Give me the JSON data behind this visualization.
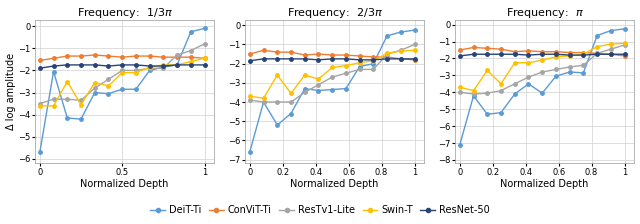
{
  "titles": [
    "Frequency:  $1/3\\pi$",
    "Frequency:  $2/3\\pi$",
    "Frequency:  $\\pi$"
  ],
  "xlabel": "Normalized Depth",
  "ylabel": "Δ log amplitude",
  "legend_labels": [
    "DeiT-Ti",
    "ConViT-Ti",
    "ResTv1-Lite",
    "Swin-T",
    "ResNet-50"
  ],
  "colors_map": {
    "DeiT-Ti": "#5B9BD5",
    "ConViT-Ti": "#ED7D31",
    "ResTv1-Lite": "#A5A5A5",
    "Swin-T": "#FFC000",
    "ResNet-50": "#264478"
  },
  "markers_map": {
    "DeiT-Ti": "o",
    "ConViT-Ti": "o",
    "ResTv1-Lite": "o",
    "Swin-T": "o",
    "ResNet-50": "o"
  },
  "panel1": {
    "DeiT-Ti_y": [
      -5.7,
      -2.05,
      -4.15,
      -4.2,
      -3.0,
      -3.05,
      -2.85,
      -2.85,
      -2.0,
      -1.85,
      -1.75,
      -0.25,
      -0.1
    ],
    "ConViT-Ti_y": [
      -1.55,
      -1.45,
      -1.35,
      -1.35,
      -1.3,
      -1.35,
      -1.4,
      -1.35,
      -1.35,
      -1.4,
      -1.4,
      -1.4,
      -1.45
    ],
    "ResTv1-Lite_y": [
      -3.5,
      -3.3,
      -3.3,
      -3.35,
      -2.8,
      -2.4,
      -2.0,
      -2.0,
      -1.9,
      -1.9,
      -1.3,
      -1.1,
      -0.8
    ],
    "Swin-T_y": [
      -3.6,
      -3.6,
      -2.5,
      -3.55,
      -2.55,
      -2.7,
      -2.1,
      -2.1,
      -1.85,
      -1.75,
      -1.75,
      -1.6,
      -1.45
    ],
    "ResNet-50_y": [
      -1.9,
      -1.8,
      -1.75,
      -1.75,
      -1.75,
      -1.8,
      -1.75,
      -1.75,
      -1.8,
      -1.8,
      -1.75,
      -1.75,
      -1.75
    ],
    "ylim": [
      -6.2,
      0.3
    ],
    "yticks": [
      0,
      -1,
      -2,
      -3,
      -4,
      -5,
      -6
    ],
    "xticks": [
      0,
      0.5,
      1.0
    ],
    "xticklabels": [
      "0",
      "0.5",
      "1"
    ]
  },
  "panel2": {
    "DeiT-Ti_y": [
      -6.6,
      -4.0,
      -5.2,
      -4.6,
      -3.3,
      -3.4,
      -3.35,
      -3.3,
      -2.15,
      -2.0,
      -0.55,
      -0.35,
      -0.25
    ],
    "ConViT-Ti_y": [
      -1.5,
      -1.3,
      -1.4,
      -1.4,
      -1.55,
      -1.5,
      -1.55,
      -1.55,
      -1.6,
      -1.65,
      -1.65,
      -1.75,
      -1.8
    ],
    "ResTv1-Lite_y": [
      -3.9,
      -4.0,
      -4.0,
      -4.0,
      -3.5,
      -3.1,
      -2.7,
      -2.5,
      -2.3,
      -2.3,
      -1.5,
      -1.3,
      -1.0
    ],
    "Swin-T_y": [
      -3.7,
      -3.8,
      -2.6,
      -3.55,
      -2.6,
      -2.8,
      -2.2,
      -2.1,
      -1.95,
      -1.85,
      -1.45,
      -1.35,
      -1.3
    ],
    "ResNet-50_y": [
      -1.85,
      -1.75,
      -1.75,
      -1.75,
      -1.75,
      -1.8,
      -1.75,
      -1.75,
      -1.8,
      -1.8,
      -1.75,
      -1.75,
      -1.75
    ],
    "ylim": [
      -7.2,
      0.3
    ],
    "yticks": [
      0,
      -1,
      -2,
      -3,
      -4,
      -5,
      -6,
      -7
    ],
    "xticks": [
      0,
      0.2,
      0.4,
      0.6,
      0.8,
      1.0
    ],
    "xticklabels": [
      "0",
      "0.2",
      "0.4",
      "0.6",
      "0.8",
      "1"
    ]
  },
  "panel3": {
    "DeiT-Ti_y": [
      -7.1,
      -4.2,
      -5.3,
      -5.2,
      -4.1,
      -3.5,
      -4.05,
      -3.05,
      -2.8,
      -2.85,
      -0.65,
      -0.35,
      -0.25
    ],
    "ConViT-Ti_y": [
      -1.5,
      -1.35,
      -1.4,
      -1.45,
      -1.6,
      -1.55,
      -1.6,
      -1.6,
      -1.65,
      -1.65,
      -1.7,
      -1.75,
      -1.85
    ],
    "ResTv1-Lite_y": [
      -4.0,
      -4.1,
      -4.05,
      -3.9,
      -3.5,
      -3.1,
      -2.8,
      -2.65,
      -2.5,
      -2.4,
      -1.7,
      -1.45,
      -1.2
    ],
    "Swin-T_y": [
      -3.7,
      -3.9,
      -2.7,
      -3.5,
      -2.25,
      -2.25,
      -2.1,
      -1.9,
      -1.85,
      -1.75,
      -1.3,
      -1.15,
      -1.1
    ],
    "ResNet-50_y": [
      -1.85,
      -1.75,
      -1.75,
      -1.75,
      -1.75,
      -1.8,
      -1.75,
      -1.75,
      -1.8,
      -1.8,
      -1.75,
      -1.75,
      -1.75
    ],
    "ylim": [
      -8.2,
      0.3
    ],
    "yticks": [
      0,
      -1,
      -2,
      -3,
      -4,
      -5,
      -6,
      -7,
      -8
    ],
    "xticks": [
      0,
      0.2,
      0.4,
      0.6,
      0.8,
      1.0
    ],
    "xticklabels": [
      "0",
      "0.2",
      "0.4",
      "0.6",
      "0.8",
      "1"
    ]
  },
  "x": [
    0.0,
    0.0833,
    0.1667,
    0.25,
    0.3333,
    0.4167,
    0.5,
    0.5833,
    0.6667,
    0.75,
    0.8333,
    0.9167,
    1.0
  ]
}
